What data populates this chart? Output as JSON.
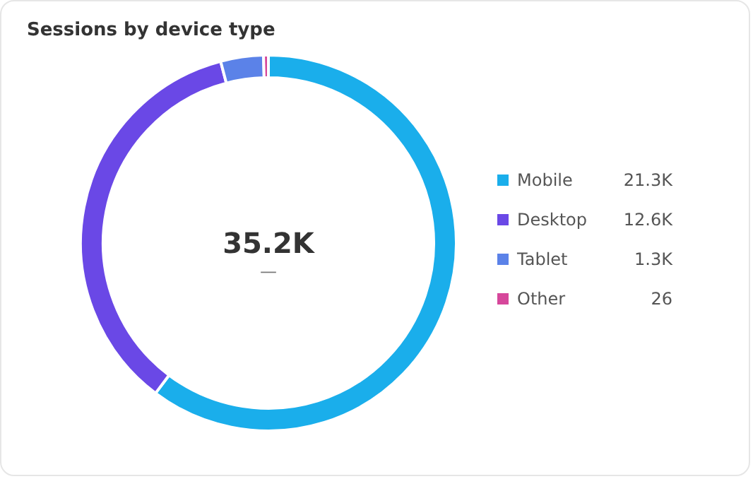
{
  "chart_data": {
    "type": "donut",
    "title": "Sessions by device type",
    "categories": [
      "Mobile",
      "Desktop",
      "Tablet",
      "Other"
    ],
    "values": [
      21300,
      12600,
      1300,
      26
    ],
    "value_labels": [
      "21.3K",
      "12.6K",
      "1.3K",
      "26"
    ],
    "colors": [
      "#1aaeeb",
      "#6a48e6",
      "#5b82e8",
      "#d6479b"
    ],
    "annotations": [
      "35.2K",
      "—"
    ],
    "legend": "right"
  }
}
